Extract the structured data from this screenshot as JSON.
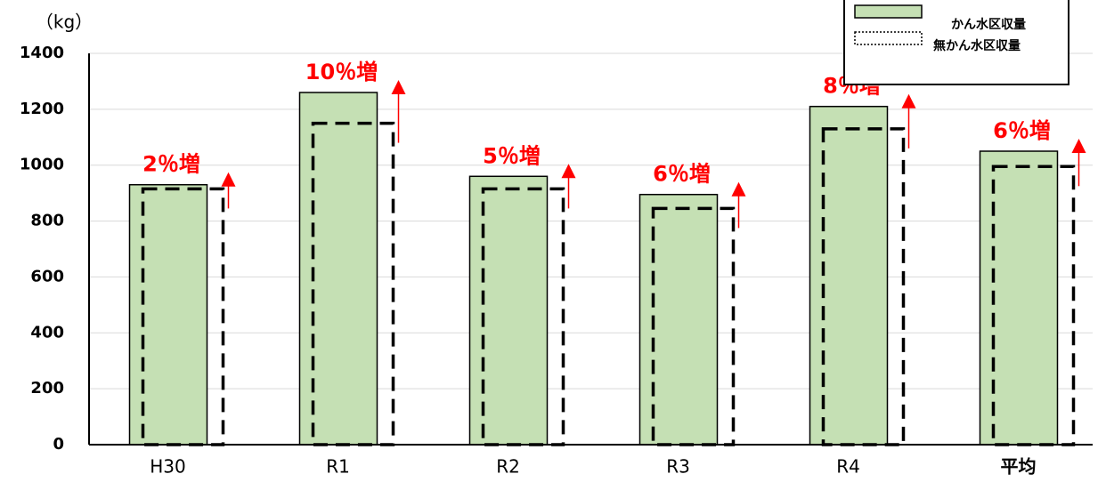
{
  "chart_data": {
    "type": "bar",
    "y_label": "（kg）",
    "categories": [
      "H30",
      "R1",
      "R2",
      "R3",
      "R4",
      "平均"
    ],
    "series": [
      {
        "name": "かん水区収量",
        "color": "#c5e0b4",
        "values": [
          930,
          1260,
          960,
          895,
          1210,
          1050
        ]
      },
      {
        "name": "無かん水区収量",
        "color": "#000000",
        "values": [
          915,
          1150,
          915,
          845,
          1130,
          995
        ]
      }
    ],
    "annotations": [
      "2％増",
      "10％増",
      "5％増",
      "6％増",
      "8％増",
      "6％増"
    ],
    "ylim": [
      0,
      1400
    ],
    "yticks": [
      0,
      200,
      400,
      600,
      800,
      1000,
      1200,
      1400
    ],
    "grid": true,
    "legend": "upper right"
  }
}
